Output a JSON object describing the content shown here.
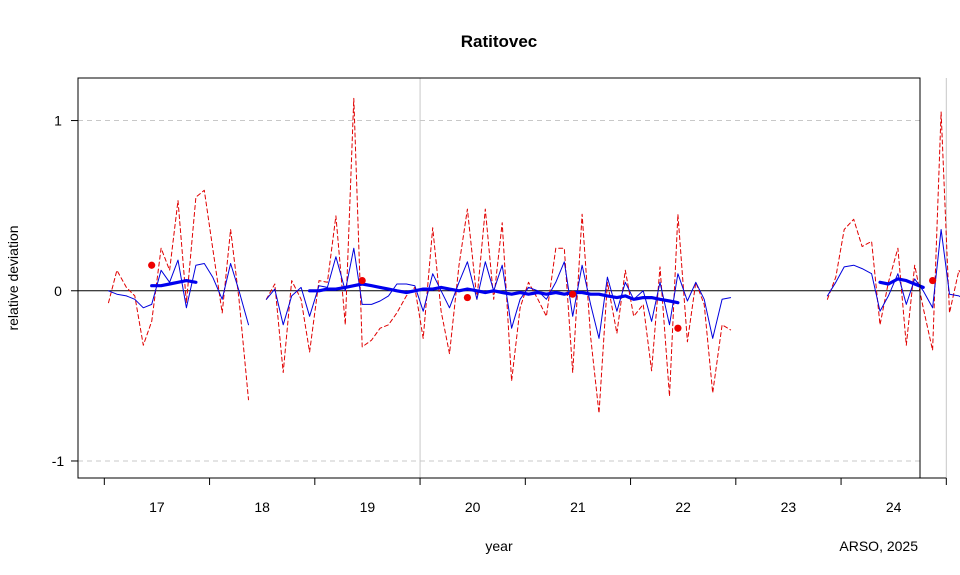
{
  "chart_data": {
    "type": "line",
    "title": "Ratitovec",
    "xlabel": "year",
    "ylabel": "relative deviation",
    "credit": "ARSO, 2025",
    "xlim": [
      2016.25,
      2024.25
    ],
    "ylim": [
      -1.1,
      1.25
    ],
    "x_ticks": [
      {
        "value": 2016.5,
        "label": ""
      },
      {
        "value": 2017.5,
        "label": ""
      },
      {
        "value": 2018.5,
        "label": ""
      },
      {
        "value": 2019.5,
        "label": ""
      },
      {
        "value": 2020.5,
        "label": ""
      },
      {
        "value": 2021.5,
        "label": ""
      },
      {
        "value": 2022.5,
        "label": ""
      },
      {
        "value": 2023.5,
        "label": ""
      },
      {
        "value": 2024.5,
        "label": ""
      }
    ],
    "year_labels": [
      {
        "value": 2017,
        "label": "17"
      },
      {
        "value": 2018,
        "label": "18"
      },
      {
        "value": 2019,
        "label": "19"
      },
      {
        "value": 2020,
        "label": "20"
      },
      {
        "value": 2021,
        "label": "21"
      },
      {
        "value": 2022,
        "label": "22"
      },
      {
        "value": 2023,
        "label": "23"
      },
      {
        "value": 2024,
        "label": "24"
      }
    ],
    "y_ticks": [
      {
        "value": -1,
        "label": "-1"
      },
      {
        "value": 0,
        "label": "0"
      },
      {
        "value": 1,
        "label": "1"
      }
    ],
    "grid": {
      "dashed_y": [
        -1,
        1
      ],
      "vertical_x": [
        2019.5,
        2024.5
      ],
      "zero_line": 0
    },
    "series": [
      {
        "style": "red-dashed",
        "color": "#e00000",
        "segments": [
          [
            [
              2016.54,
              -0.07
            ],
            [
              2016.62,
              0.12
            ],
            [
              2016.71,
              0.02
            ],
            [
              2016.79,
              -0.03
            ],
            [
              2016.87,
              -0.32
            ],
            [
              2016.95,
              -0.18
            ],
            [
              2017.04,
              0.25
            ],
            [
              2017.12,
              0.12
            ],
            [
              2017.2,
              0.53
            ],
            [
              2017.28,
              -0.07
            ],
            [
              2017.37,
              0.55
            ],
            [
              2017.45,
              0.59
            ],
            [
              2017.53,
              0.25
            ],
            [
              2017.62,
              -0.13
            ],
            [
              2017.7,
              0.36
            ],
            [
              2017.78,
              -0.05
            ],
            [
              2017.87,
              -0.64
            ]
          ],
          [
            [
              2018.04,
              -0.05
            ],
            [
              2018.12,
              0.04
            ],
            [
              2018.2,
              -0.48
            ],
            [
              2018.28,
              0.06
            ],
            [
              2018.37,
              -0.05
            ],
            [
              2018.45,
              -0.36
            ],
            [
              2018.54,
              0.06
            ],
            [
              2018.62,
              0.05
            ],
            [
              2018.7,
              0.44
            ],
            [
              2018.79,
              -0.2
            ],
            [
              2018.87,
              1.13
            ],
            [
              2018.95,
              -0.33
            ],
            [
              2019.04,
              -0.29
            ],
            [
              2019.12,
              -0.22
            ],
            [
              2019.2,
              -0.2
            ],
            [
              2019.28,
              -0.13
            ],
            [
              2019.37,
              -0.03
            ],
            [
              2019.45,
              0.02
            ],
            [
              2019.53,
              -0.28
            ],
            [
              2019.62,
              0.37
            ],
            [
              2019.7,
              -0.12
            ],
            [
              2019.78,
              -0.37
            ],
            [
              2019.87,
              0.15
            ],
            [
              2019.95,
              0.48
            ],
            [
              2020.04,
              -0.05
            ],
            [
              2020.12,
              0.48
            ],
            [
              2020.2,
              -0.05
            ],
            [
              2020.28,
              0.4
            ],
            [
              2020.37,
              -0.53
            ],
            [
              2020.45,
              -0.1
            ],
            [
              2020.53,
              0.05
            ],
            [
              2020.62,
              -0.05
            ],
            [
              2020.7,
              -0.15
            ],
            [
              2020.79,
              0.25
            ],
            [
              2020.87,
              0.25
            ],
            [
              2020.95,
              -0.48
            ],
            [
              2021.04,
              0.45
            ],
            [
              2021.12,
              -0.27
            ],
            [
              2021.2,
              -0.72
            ],
            [
              2021.28,
              0.05
            ],
            [
              2021.37,
              -0.25
            ],
            [
              2021.45,
              0.12
            ],
            [
              2021.53,
              -0.15
            ],
            [
              2021.62,
              -0.08
            ],
            [
              2021.7,
              -0.47
            ],
            [
              2021.78,
              0.14
            ],
            [
              2021.87,
              -0.62
            ],
            [
              2021.95,
              0.45
            ],
            [
              2022.04,
              -0.3
            ],
            [
              2022.12,
              0.05
            ],
            [
              2022.2,
              -0.08
            ],
            [
              2022.28,
              -0.6
            ],
            [
              2022.37,
              -0.2
            ],
            [
              2022.45,
              -0.23
            ]
          ],
          [
            [
              2023.37,
              -0.05
            ],
            [
              2023.45,
              0.08
            ],
            [
              2023.53,
              0.36
            ],
            [
              2023.62,
              0.42
            ],
            [
              2023.7,
              0.26
            ],
            [
              2023.79,
              0.29
            ],
            [
              2023.87,
              -0.2
            ],
            [
              2023.95,
              0.05
            ],
            [
              2024.04,
              0.25
            ],
            [
              2024.12,
              -0.32
            ],
            [
              2024.2,
              0.15
            ],
            [
              2024.28,
              -0.1
            ],
            [
              2024.37,
              -0.35
            ],
            [
              2024.45,
              1.05
            ],
            [
              2024.53,
              -0.13
            ],
            [
              2024.62,
              0.12
            ],
            [
              2024.7,
              0.05
            ]
          ]
        ]
      },
      {
        "style": "blue-thin",
        "color": "#0000dd",
        "segments": [
          [
            [
              2016.54,
              0.0
            ],
            [
              2016.62,
              -0.02
            ],
            [
              2016.71,
              -0.03
            ],
            [
              2016.79,
              -0.05
            ],
            [
              2016.87,
              -0.1
            ],
            [
              2016.95,
              -0.08
            ],
            [
              2017.04,
              0.12
            ],
            [
              2017.12,
              0.05
            ],
            [
              2017.2,
              0.18
            ],
            [
              2017.28,
              -0.1
            ],
            [
              2017.37,
              0.15
            ],
            [
              2017.45,
              0.16
            ],
            [
              2017.53,
              0.08
            ],
            [
              2017.62,
              -0.05
            ],
            [
              2017.7,
              0.16
            ],
            [
              2017.78,
              0.0
            ],
            [
              2017.87,
              -0.2
            ]
          ],
          [
            [
              2018.04,
              -0.05
            ],
            [
              2018.12,
              0.01
            ],
            [
              2018.2,
              -0.2
            ],
            [
              2018.28,
              -0.03
            ],
            [
              2018.37,
              0.02
            ],
            [
              2018.45,
              -0.15
            ],
            [
              2018.54,
              0.03
            ],
            [
              2018.62,
              0.02
            ],
            [
              2018.7,
              0.2
            ],
            [
              2018.79,
              0.0
            ],
            [
              2018.87,
              0.25
            ],
            [
              2018.95,
              -0.08
            ],
            [
              2019.04,
              -0.08
            ],
            [
              2019.12,
              -0.06
            ],
            [
              2019.2,
              -0.03
            ],
            [
              2019.28,
              0.04
            ],
            [
              2019.37,
              0.04
            ],
            [
              2019.45,
              0.03
            ],
            [
              2019.53,
              -0.12
            ],
            [
              2019.62,
              0.1
            ],
            [
              2019.7,
              0.0
            ],
            [
              2019.78,
              -0.1
            ],
            [
              2019.87,
              0.05
            ],
            [
              2019.95,
              0.17
            ],
            [
              2020.04,
              -0.05
            ],
            [
              2020.12,
              0.17
            ],
            [
              2020.2,
              0.0
            ],
            [
              2020.28,
              0.15
            ],
            [
              2020.37,
              -0.22
            ],
            [
              2020.45,
              -0.05
            ],
            [
              2020.53,
              0.02
            ],
            [
              2020.62,
              0.0
            ],
            [
              2020.7,
              -0.05
            ],
            [
              2020.79,
              0.05
            ],
            [
              2020.87,
              0.17
            ],
            [
              2020.95,
              -0.15
            ],
            [
              2021.04,
              0.15
            ],
            [
              2021.12,
              -0.08
            ],
            [
              2021.2,
              -0.28
            ],
            [
              2021.28,
              0.08
            ],
            [
              2021.37,
              -0.12
            ],
            [
              2021.45,
              0.05
            ],
            [
              2021.53,
              -0.05
            ],
            [
              2021.62,
              0.0
            ],
            [
              2021.7,
              -0.18
            ],
            [
              2021.78,
              0.05
            ],
            [
              2021.87,
              -0.2
            ],
            [
              2021.95,
              0.1
            ],
            [
              2022.04,
              -0.06
            ],
            [
              2022.12,
              0.05
            ],
            [
              2022.2,
              -0.05
            ],
            [
              2022.28,
              -0.28
            ],
            [
              2022.37,
              -0.05
            ],
            [
              2022.45,
              -0.04
            ]
          ],
          [
            [
              2023.37,
              -0.03
            ],
            [
              2023.45,
              0.05
            ],
            [
              2023.53,
              0.14
            ],
            [
              2023.62,
              0.15
            ],
            [
              2023.7,
              0.13
            ],
            [
              2023.79,
              0.1
            ],
            [
              2023.87,
              -0.12
            ],
            [
              2023.95,
              -0.03
            ],
            [
              2024.04,
              0.1
            ],
            [
              2024.12,
              -0.08
            ],
            [
              2024.2,
              0.07
            ],
            [
              2024.28,
              0.0
            ],
            [
              2024.37,
              -0.1
            ],
            [
              2024.45,
              0.36
            ],
            [
              2024.53,
              -0.02
            ],
            [
              2024.62,
              -0.03
            ],
            [
              2024.7,
              -0.06
            ]
          ]
        ]
      },
      {
        "style": "blue-thick",
        "color": "#0000ee",
        "segments": [
          [
            [
              2016.95,
              0.03
            ],
            [
              2017.04,
              0.03
            ],
            [
              2017.12,
              0.04
            ],
            [
              2017.2,
              0.05
            ],
            [
              2017.28,
              0.06
            ],
            [
              2017.37,
              0.05
            ]
          ],
          [
            [
              2018.45,
              0.0
            ],
            [
              2018.54,
              0.0
            ],
            [
              2018.62,
              0.01
            ],
            [
              2018.7,
              0.01
            ],
            [
              2018.79,
              0.02
            ],
            [
              2018.87,
              0.03
            ],
            [
              2018.95,
              0.04
            ],
            [
              2019.04,
              0.03
            ],
            [
              2019.12,
              0.02
            ],
            [
              2019.2,
              0.01
            ],
            [
              2019.28,
              0.0
            ],
            [
              2019.37,
              -0.01
            ],
            [
              2019.45,
              0.0
            ],
            [
              2019.53,
              0.01
            ],
            [
              2019.62,
              0.01
            ],
            [
              2019.7,
              0.02
            ],
            [
              2019.78,
              0.01
            ],
            [
              2019.87,
              0.0
            ],
            [
              2019.95,
              0.01
            ],
            [
              2020.04,
              0.0
            ],
            [
              2020.12,
              -0.01
            ],
            [
              2020.2,
              0.0
            ],
            [
              2020.28,
              -0.01
            ],
            [
              2020.37,
              -0.02
            ],
            [
              2020.45,
              -0.01
            ],
            [
              2020.53,
              -0.02
            ],
            [
              2020.62,
              -0.01
            ],
            [
              2020.7,
              -0.02
            ],
            [
              2020.79,
              -0.01
            ],
            [
              2020.87,
              -0.02
            ],
            [
              2020.95,
              -0.01
            ],
            [
              2021.04,
              -0.01
            ],
            [
              2021.12,
              -0.02
            ],
            [
              2021.2,
              -0.02
            ],
            [
              2021.28,
              -0.03
            ],
            [
              2021.37,
              -0.04
            ],
            [
              2021.45,
              -0.03
            ],
            [
              2021.53,
              -0.05
            ],
            [
              2021.62,
              -0.04
            ],
            [
              2021.7,
              -0.04
            ],
            [
              2021.78,
              -0.05
            ],
            [
              2021.87,
              -0.06
            ],
            [
              2021.95,
              -0.07
            ]
          ],
          [
            [
              2023.87,
              0.05
            ],
            [
              2023.95,
              0.04
            ],
            [
              2024.04,
              0.07
            ],
            [
              2024.12,
              0.06
            ],
            [
              2024.2,
              0.04
            ],
            [
              2024.28,
              0.02
            ]
          ]
        ]
      }
    ],
    "points": {
      "color": "#ee0000",
      "data": [
        [
          2016.95,
          0.15
        ],
        [
          2018.95,
          0.06
        ],
        [
          2019.95,
          -0.04
        ],
        [
          2020.95,
          -0.02
        ],
        [
          2021.95,
          -0.22
        ],
        [
          2024.37,
          0.06
        ]
      ]
    }
  }
}
